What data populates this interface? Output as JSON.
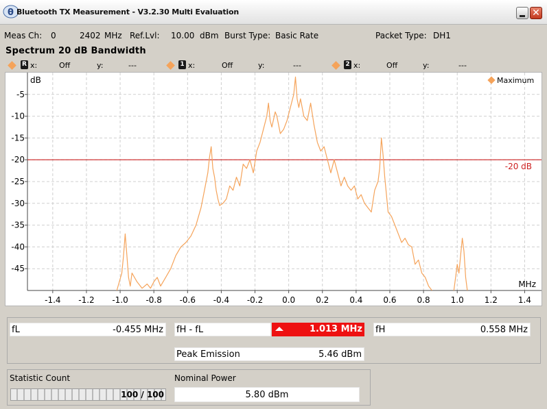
{
  "window": {
    "title": "Bluetooth TX Measurement  - V3.2.30 Multi Evaluation",
    "icon_text": "θ",
    "minimize_icon": "minimize-icon",
    "close_icon": "close-icon",
    "close_glyph": "✕"
  },
  "meas": {
    "meas_ch_label": "Meas Ch:",
    "meas_ch_value": "0",
    "freq_value": "2402",
    "freq_unit": "MHz",
    "ref_lvl_label": "Ref.Lvl:",
    "ref_lvl_value": "10.00",
    "ref_lvl_unit": "dBm",
    "burst_label": "Burst Type:",
    "burst_value": "Basic Rate",
    "packet_label": "Packet Type:",
    "packet_value": "DH1"
  },
  "section_title": "Spectrum 20 dB Bandwidth",
  "markers": [
    {
      "id": "marker-r",
      "glyph": "R",
      "x_label": "x:",
      "x_value": "Off",
      "y_label": "y:",
      "y_value": "---"
    },
    {
      "id": "marker-1",
      "glyph": "1",
      "x_label": "x:",
      "x_value": "Off",
      "y_label": "y:",
      "y_value": "---"
    },
    {
      "id": "marker-2",
      "glyph": "2",
      "x_label": "x:",
      "x_value": "Off",
      "y_label": "y:",
      "y_value": "---"
    }
  ],
  "colors": {
    "trace": "#f5a35a",
    "threshold_line": "#cc2020",
    "grid": "#cfcfcf",
    "alert": "#ee1111"
  },
  "chart_data": {
    "type": "line",
    "ylabel": "dB",
    "xlabel": "MHz",
    "xlim": [
      -1.55,
      1.5
    ],
    "ylim": [
      -50,
      0
    ],
    "x_ticks": [
      -1.4,
      -1.2,
      -1.0,
      -0.8,
      -0.6,
      -0.4,
      -0.2,
      0.0,
      0.2,
      0.4,
      0.6,
      0.8,
      1.0,
      1.2,
      1.4
    ],
    "x_tick_labels": [
      "-1.4",
      "-1.2",
      "-1.0",
      "-0.8",
      "-0.6",
      "-0.4",
      "-0.2",
      "0.0",
      "0.2",
      "0.4",
      "0.6",
      "0.8",
      "1.0",
      "1.2",
      "1.4"
    ],
    "y_ticks": [
      -5,
      -10,
      -15,
      -20,
      -25,
      -30,
      -35,
      -40,
      -45
    ],
    "y_tick_labels": [
      "-5",
      "-10",
      "-15",
      "-20",
      "-25",
      "-30",
      "-35",
      "-40",
      "-45"
    ],
    "grid": true,
    "legend": {
      "placement": "top-right",
      "entries": [
        "Maximum"
      ]
    },
    "threshold": {
      "value": -20,
      "label": "-20 dB"
    },
    "series": [
      {
        "name": "Maximum",
        "x": [
          -1.02,
          -0.99,
          -0.98,
          -0.97,
          -0.96,
          -0.95,
          -0.94,
          -0.93,
          -0.9,
          -0.87,
          -0.84,
          -0.82,
          -0.8,
          -0.78,
          -0.76,
          -0.73,
          -0.7,
          -0.67,
          -0.64,
          -0.61,
          -0.58,
          -0.55,
          -0.52,
          -0.5,
          -0.48,
          -0.47,
          -0.46,
          -0.45,
          -0.44,
          -0.43,
          -0.42,
          -0.41,
          -0.39,
          -0.37,
          -0.35,
          -0.33,
          -0.31,
          -0.29,
          -0.27,
          -0.25,
          -0.23,
          -0.21,
          -0.19,
          -0.17,
          -0.15,
          -0.13,
          -0.12,
          -0.11,
          -0.1,
          -0.08,
          -0.07,
          -0.05,
          -0.03,
          -0.01,
          0.01,
          0.03,
          0.04,
          0.05,
          0.06,
          0.07,
          0.09,
          0.11,
          0.13,
          0.15,
          0.17,
          0.19,
          0.21,
          0.23,
          0.25,
          0.27,
          0.29,
          0.31,
          0.33,
          0.35,
          0.37,
          0.39,
          0.41,
          0.43,
          0.45,
          0.47,
          0.49,
          0.51,
          0.53,
          0.54,
          0.55,
          0.56,
          0.57,
          0.59,
          0.61,
          0.63,
          0.65,
          0.67,
          0.69,
          0.71,
          0.73,
          0.75,
          0.77,
          0.79,
          0.81,
          0.83,
          0.85
        ],
        "values": [
          -50,
          -46,
          -42,
          -37,
          -42,
          -47,
          -49,
          -46,
          -48,
          -49.5,
          -48.5,
          -49.5,
          -48,
          -47,
          -49,
          -47,
          -45,
          -42,
          -40,
          -39,
          -37.5,
          -35,
          -31,
          -27,
          -23,
          -19.5,
          -17,
          -22,
          -24,
          -27,
          -29,
          -30.5,
          -30,
          -29,
          -26,
          -27,
          -24,
          -26,
          -21,
          -22,
          -20,
          -23,
          -18,
          -16,
          -13,
          -10,
          -7,
          -11,
          -12.5,
          -9,
          -10,
          -14,
          -13,
          -11,
          -8,
          -5,
          -1,
          -6,
          -8,
          -6,
          -10,
          -11,
          -7,
          -12,
          -16,
          -18,
          -17,
          -20,
          -23,
          -20,
          -23,
          -26,
          -24,
          -26,
          -27,
          -26,
          -29,
          -28,
          -30,
          -31,
          -32,
          -27,
          -25,
          -22,
          -15,
          -19,
          -24,
          -32,
          -33,
          -35,
          -37,
          -39,
          -38,
          -39.5,
          -40,
          -44,
          -43,
          -46,
          -47,
          -49,
          -50
        ]
      },
      {
        "name": "Maximum",
        "x": [
          0.98,
          0.99,
          1.0,
          1.01,
          1.02,
          1.03,
          1.04,
          1.05,
          1.06
        ],
        "values": [
          -50,
          -47,
          -44,
          -46,
          -42,
          -38,
          -41,
          -47,
          -50
        ]
      }
    ]
  },
  "results": {
    "fl_label": "fL",
    "fl_value": "-0.455 MHz",
    "diff_label": "fH - fL",
    "diff_value": "1.013 MHz",
    "diff_alert_icon": "up-arrow-icon",
    "fh_label": "fH",
    "fh_value": "0.558 MHz",
    "peak_label": "Peak Emission",
    "peak_value": "5.46 dBm"
  },
  "stats": {
    "count_label": "Statistic Count",
    "count_text": "100 / 100",
    "count_fraction": 1.0,
    "nominal_label": "Nominal Power",
    "nominal_value": "5.80 dBm"
  }
}
